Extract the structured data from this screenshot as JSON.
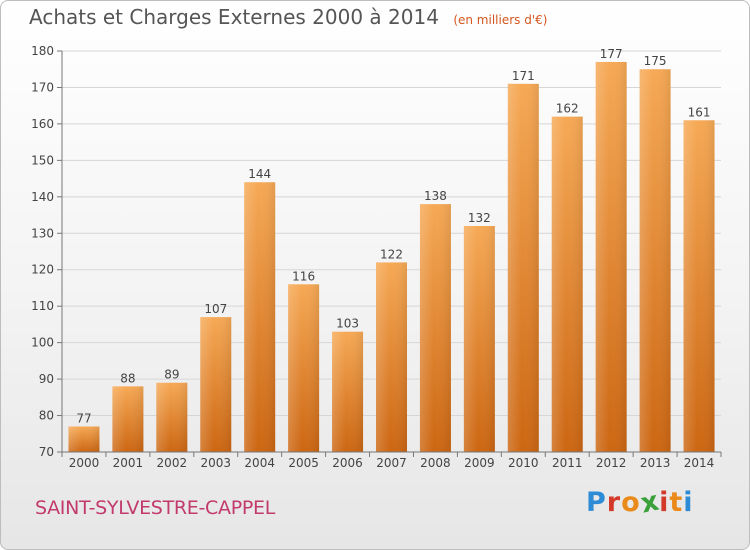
{
  "header": {
    "title": "Achats et Charges Externes 2000 à 2014",
    "subtitle": "(en milliers d'€)"
  },
  "footer": {
    "city": "SAINT-SYLVESTRE-CAPPEL",
    "logo": "Proxiti"
  },
  "colors": {
    "bar_light": "#f6a955",
    "bar_dark": "#cc6612",
    "axis": "#777777",
    "grid": "#d6d6d6",
    "city": "#c23a6c",
    "logo_letters": [
      "#2e8bd6",
      "#d43a2a",
      "#e98a1a",
      "#3aa03a",
      "#d43a2a",
      "#e98a1a",
      "#2e8bd6"
    ]
  },
  "chart_data": {
    "type": "bar",
    "title": "Achats et Charges Externes 2000 à 2014",
    "subtitle": "(en milliers d'€)",
    "xlabel": "",
    "ylabel": "",
    "categories": [
      "2000",
      "2001",
      "2002",
      "2003",
      "2004",
      "2005",
      "2006",
      "2007",
      "2008",
      "2009",
      "2010",
      "2011",
      "2012",
      "2013",
      "2014"
    ],
    "values": [
      77,
      88,
      89,
      107,
      144,
      116,
      103,
      122,
      138,
      132,
      171,
      162,
      177,
      175,
      161
    ],
    "ylim": [
      70,
      180
    ],
    "yticks": [
      70,
      80,
      90,
      100,
      110,
      120,
      130,
      140,
      150,
      160,
      170,
      180
    ],
    "grid": true,
    "data_labels": true
  }
}
